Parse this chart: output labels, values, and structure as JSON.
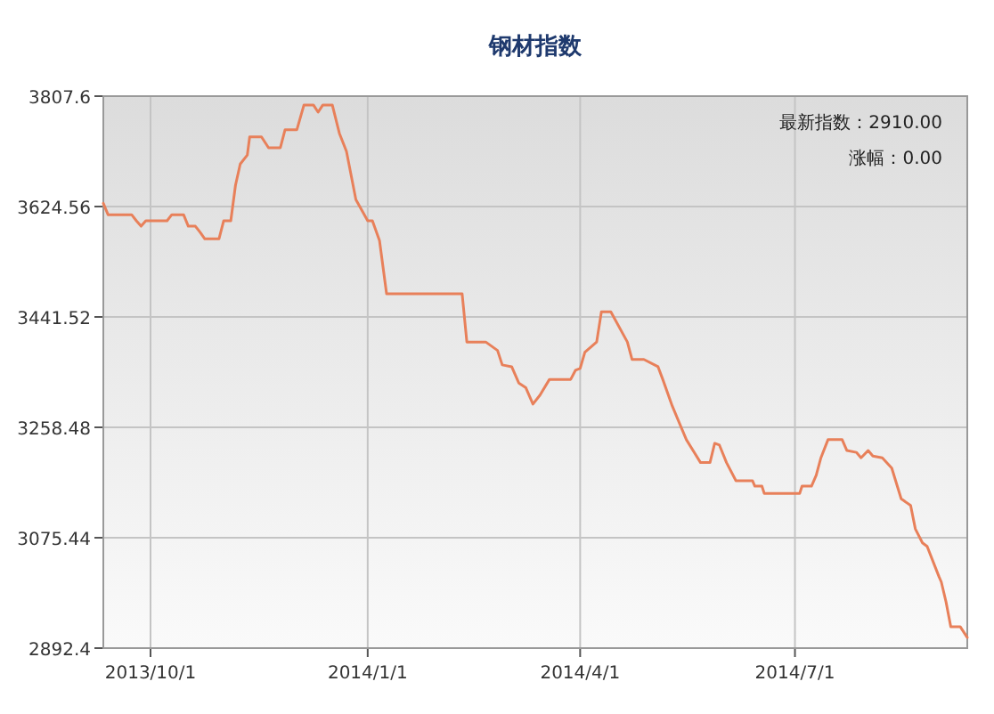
{
  "chart_data": {
    "type": "line",
    "title": "钢材指数",
    "annotations": [
      "最新指数：2910.00",
      "涨幅：0.00"
    ],
    "x": [
      "2013-09-11",
      "2013-09-13",
      "2013-09-23",
      "2013-09-25",
      "2013-09-27",
      "2013-09-29",
      "2013-10-08",
      "2013-10-10",
      "2013-10-15",
      "2013-10-17",
      "2013-10-20",
      "2013-10-22",
      "2013-10-24",
      "2013-10-30",
      "2013-11-01",
      "2013-11-04",
      "2013-11-06",
      "2013-11-08",
      "2013-11-11",
      "2013-11-12",
      "2013-11-17",
      "2013-11-20",
      "2013-11-25",
      "2013-11-27",
      "2013-12-02",
      "2013-12-05",
      "2013-12-09",
      "2013-12-11",
      "2013-12-13",
      "2013-12-17",
      "2013-12-20",
      "2013-12-23",
      "2013-12-27",
      "2014-01-01",
      "2014-01-03",
      "2014-01-06",
      "2014-01-09",
      "2014-02-10",
      "2014-02-12",
      "2014-02-20",
      "2014-02-25",
      "2014-02-27",
      "2014-03-03",
      "2014-03-06",
      "2014-03-09",
      "2014-03-12",
      "2014-03-15",
      "2014-03-19",
      "2014-03-28",
      "2014-03-30",
      "2014-04-01",
      "2014-04-03",
      "2014-04-08",
      "2014-04-10",
      "2014-04-14",
      "2014-04-21",
      "2014-04-23",
      "2014-04-28",
      "2014-05-04",
      "2014-05-06",
      "2014-05-10",
      "2014-05-16",
      "2014-05-22",
      "2014-05-26",
      "2014-05-28",
      "2014-05-30",
      "2014-06-02",
      "2014-06-06",
      "2014-06-13",
      "2014-06-14",
      "2014-06-17",
      "2014-06-18",
      "2014-07-03",
      "2014-07-04",
      "2014-07-08",
      "2014-07-10",
      "2014-07-12",
      "2014-07-15",
      "2014-07-21",
      "2014-07-23",
      "2014-07-27",
      "2014-07-29",
      "2014-08-01",
      "2014-08-03",
      "2014-08-07",
      "2014-08-11",
      "2014-08-15",
      "2014-08-19",
      "2014-08-21",
      "2014-08-24",
      "2014-08-26",
      "2014-08-29",
      "2014-08-31",
      "2014-09-01",
      "2014-09-03",
      "2014-09-05",
      "2014-09-09",
      "2014-09-12"
    ],
    "series": [
      {
        "color": "#e8805a",
        "values": [
          3630,
          3611,
          3611,
          3601,
          3592,
          3601,
          3601,
          3611,
          3611,
          3592,
          3592,
          3582,
          3571,
          3571,
          3601,
          3601,
          3660,
          3695,
          3710,
          3740,
          3740,
          3722,
          3722,
          3752,
          3752,
          3793,
          3793,
          3781,
          3793,
          3793,
          3746,
          3716,
          3636,
          3601,
          3601,
          3568,
          3480,
          3480,
          3400,
          3400,
          3386,
          3362,
          3359,
          3332,
          3324,
          3297,
          3312,
          3338,
          3338,
          3353,
          3356,
          3383,
          3400,
          3450,
          3450,
          3400,
          3371,
          3371,
          3359,
          3338,
          3294,
          3238,
          3200,
          3200,
          3232,
          3229,
          3200,
          3170,
          3170,
          3161,
          3161,
          3149,
          3149,
          3161,
          3161,
          3179,
          3208,
          3238,
          3238,
          3220,
          3217,
          3208,
          3220,
          3211,
          3208,
          3191,
          3140,
          3129,
          3090,
          3067,
          3061,
          3031,
          3011,
          3002,
          2969,
          2928,
          2928,
          2910
        ]
      }
    ],
    "xlim": [
      "2013-09-11",
      "2014-09-12"
    ],
    "xticks": [
      {
        "value": "2013-10-01",
        "label": "2013/10/1"
      },
      {
        "value": "2014-01-01",
        "label": "2014/1/1"
      },
      {
        "value": "2014-04-01",
        "label": "2014/4/1"
      },
      {
        "value": "2014-07-01",
        "label": "2014/7/1"
      }
    ],
    "ylim": [
      2892.4,
      3807.6
    ],
    "yticks": [
      2892.4,
      3075.44,
      3258.48,
      3441.52,
      3624.56,
      3807.6
    ],
    "grid": true,
    "marker": "none",
    "line_style": "solid"
  }
}
